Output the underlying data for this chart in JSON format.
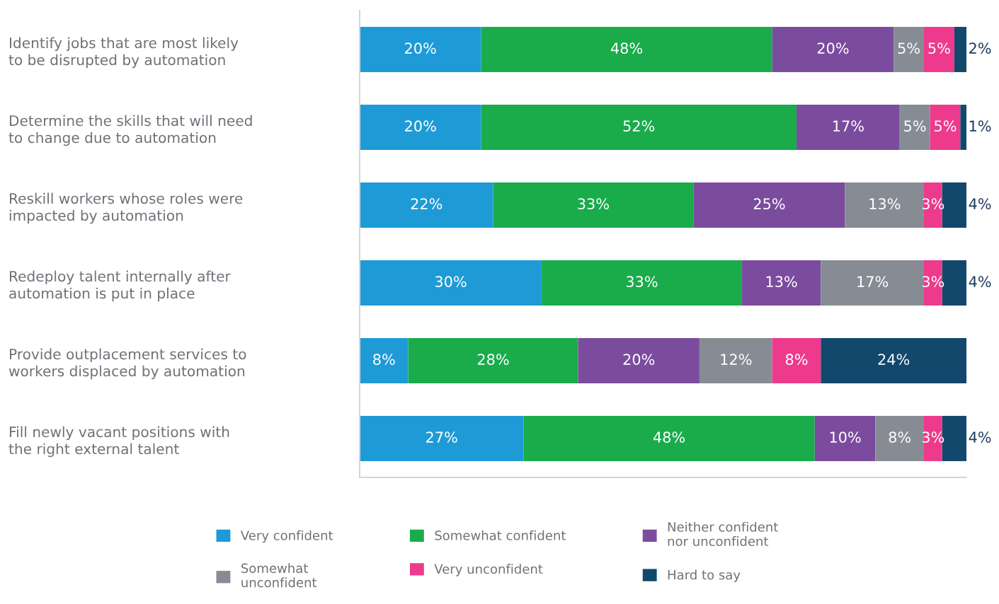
{
  "chart_data": {
    "type": "bar",
    "orientation": "horizontal",
    "stacked": true,
    "legend": "bottom",
    "tick_labels": "y",
    "grid": false,
    "categories": [
      "Identify jobs that are most likely\nto be disrupted by automation",
      "Determine the skills that will need\nto change due to automation",
      "Reskill workers whose roles were\nimpacted by automation",
      "Redeploy talent internally after\nautomation is put in place",
      "Provide outplacement services to\nworkers displaced by automation",
      "Fill newly vacant positions with\nthe right external talent"
    ],
    "series": [
      {
        "name": "Very confident",
        "color": "#1e9bd7",
        "values": [
          20,
          20,
          22,
          30,
          8,
          27
        ],
        "value_labels": [
          "20%",
          "20%",
          "22%",
          "30%",
          "8%",
          "27%"
        ]
      },
      {
        "name": "Somewhat confident",
        "color": "#1aab4b",
        "values": [
          48,
          52,
          33,
          33,
          28,
          48
        ],
        "value_labels": [
          "48%",
          "52%",
          "33%",
          "33%",
          "28%",
          "48%"
        ]
      },
      {
        "name": "Neither confident\nnor unconfident",
        "color": "#7b4c9d",
        "values": [
          20,
          17,
          25,
          13,
          20,
          10
        ],
        "value_labels": [
          "20%",
          "17%",
          "25%",
          "13%",
          "20%",
          "10%"
        ]
      },
      {
        "name": "Somewhat\nunconfident",
        "color": "#878c94",
        "values": [
          5,
          5,
          13,
          17,
          12,
          8
        ],
        "value_labels": [
          "5%",
          "5%",
          "13%",
          "17%",
          "12%",
          "8%"
        ]
      },
      {
        "name": "Very unconfident",
        "color": "#ee3a8c",
        "values": [
          5,
          5,
          3,
          3,
          8,
          3
        ],
        "value_labels": [
          "5%",
          "5%",
          "3%",
          "3%",
          "8%",
          "3%"
        ]
      },
      {
        "name": "Hard to say",
        "color": "#12486b",
        "values": [
          2,
          1,
          4,
          4,
          24,
          4
        ],
        "value_labels": [
          "2%",
          "1%",
          "4%",
          "4%",
          "24%",
          "4%"
        ]
      }
    ]
  }
}
